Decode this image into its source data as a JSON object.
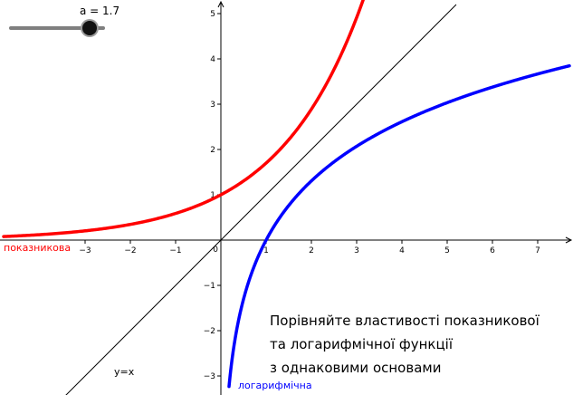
{
  "slider": {
    "label": "a = 1.7",
    "min": 0,
    "max": 2,
    "value": 1.7
  },
  "caption": {
    "lines": [
      "Порівняйте властивості показникової",
      "та логарифмічної функції",
      "з однаковими основами"
    ]
  },
  "colors": {
    "exponential": "#ff0000",
    "logarithmic": "#0000ff",
    "identity": "#000000",
    "axes": "#000000"
  },
  "chart_data": {
    "type": "line",
    "title": "",
    "xlabel": "",
    "ylabel": "",
    "xlim": [
      -4.8,
      7.7
    ],
    "ylim": [
      -3.35,
      5.3
    ],
    "x_ticks": [
      -3,
      -2,
      -1,
      0,
      1,
      2,
      3,
      4,
      5,
      6,
      7
    ],
    "y_ticks": [
      -3,
      -2,
      -1,
      1,
      2,
      3,
      4,
      5
    ],
    "grid": false,
    "base": 1.7,
    "series": [
      {
        "name": "показникова",
        "function": "y = a^x",
        "color": "#ff0000"
      },
      {
        "name": "логарифмічна",
        "function": "y = log_a(x)",
        "color": "#0000ff"
      },
      {
        "name": "y=x",
        "function": "y = x",
        "color": "#000000"
      }
    ]
  }
}
